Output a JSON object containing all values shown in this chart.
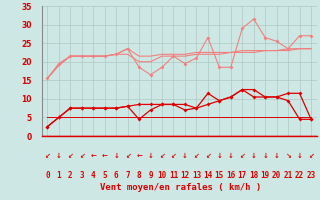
{
  "x": [
    0,
    1,
    2,
    3,
    4,
    5,
    6,
    7,
    8,
    9,
    10,
    11,
    12,
    13,
    14,
    15,
    16,
    17,
    18,
    19,
    20,
    21,
    22,
    23
  ],
  "series": {
    "rafales_pink": [
      15.5,
      19.5,
      21.5,
      21.5,
      21.5,
      21.5,
      22.0,
      23.5,
      18.5,
      16.5,
      18.5,
      21.5,
      19.5,
      21.0,
      26.5,
      18.5,
      18.5,
      29.0,
      31.5,
      26.5,
      25.5,
      23.5,
      27.0,
      27.0
    ],
    "moy_upper": [
      15.5,
      19.0,
      21.5,
      21.5,
      21.5,
      21.5,
      22.0,
      23.5,
      21.5,
      21.5,
      22.0,
      22.0,
      22.0,
      22.5,
      22.5,
      22.5,
      22.5,
      23.0,
      23.0,
      23.0,
      23.0,
      23.5,
      23.5,
      23.5
    ],
    "moy_lower": [
      15.5,
      19.0,
      21.5,
      21.5,
      21.5,
      21.5,
      22.0,
      22.0,
      20.0,
      20.0,
      21.5,
      21.5,
      21.5,
      22.0,
      22.0,
      22.0,
      22.5,
      22.5,
      22.5,
      23.0,
      23.0,
      23.0,
      23.5,
      23.5
    ],
    "vent_red_upper": [
      2.5,
      5.0,
      7.5,
      7.5,
      7.5,
      7.5,
      7.5,
      8.0,
      8.5,
      8.5,
      8.5,
      8.5,
      8.5,
      7.5,
      8.5,
      9.5,
      10.5,
      12.5,
      12.5,
      10.5,
      10.5,
      11.5,
      11.5,
      4.5
    ],
    "vent_red_lower": [
      2.5,
      5.0,
      7.5,
      7.5,
      7.5,
      7.5,
      7.5,
      8.0,
      4.5,
      7.0,
      8.5,
      8.5,
      7.0,
      7.5,
      11.5,
      9.5,
      10.5,
      12.5,
      10.5,
      10.5,
      10.5,
      9.5,
      4.5,
      4.5
    ],
    "flat_line": [
      5.0,
      5.0,
      5.0,
      5.0,
      5.0,
      5.0,
      5.0,
      5.0,
      5.0,
      5.0,
      5.0,
      5.0,
      5.0,
      5.0,
      5.0,
      5.0,
      5.0,
      5.0,
      5.0,
      5.0,
      5.0,
      5.0,
      5.0,
      5.0
    ]
  },
  "bg_color": "#cde8e4",
  "grid_color": "#b0c8c4",
  "xlabel": "Vent moyen/en rafales ( km/h )",
  "ylim": [
    0,
    35
  ],
  "yticks": [
    0,
    5,
    10,
    15,
    20,
    25,
    30,
    35
  ],
  "color_pink": "#f08080",
  "color_red": "#dd0000",
  "arrow_chars": [
    "↙",
    "↓",
    "↙",
    "↙",
    "←",
    "←",
    "↓",
    "↙",
    "←",
    "↓",
    "↙",
    "↙",
    "↓",
    "↙",
    "↙",
    "↓",
    "↓",
    "↙",
    "↓",
    "↓",
    "↓",
    "↘",
    "↓",
    "↙"
  ],
  "label_fontsize": 6.5,
  "tick_fontsize": 5.5,
  "arrow_fontsize": 5.0
}
